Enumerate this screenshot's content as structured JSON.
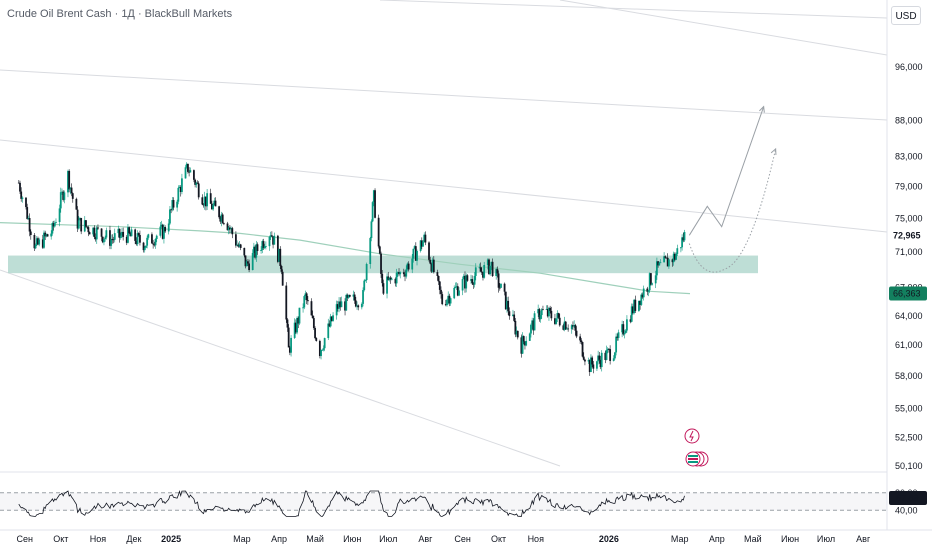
{
  "header": {
    "title": "Crude Oil Brent Cash · 1Д · BlackBull Markets",
    "currency_label": "USD"
  },
  "colors": {
    "bull": "#089981",
    "bear": "#131722",
    "zone": "#a8d3c8",
    "ma": "#9fd0bb",
    "channel": "#d9dbe0",
    "projection": "#9aa0a6",
    "last_price_bg": "#131722",
    "ma_label_bg": "#13805f"
  },
  "chart_data": [
    {
      "type": "candlestick",
      "title": "Crude Oil Brent Cash · 1Д · BlackBull Markets",
      "y_scale": "log",
      "y_axis_ticks": [
        "96,000",
        "88,000",
        "83,000",
        "79,000",
        "75,000",
        "71,000",
        "67,000",
        "64,000",
        "61,000",
        "58,000",
        "55,000",
        "52,500",
        "50,100"
      ],
      "x_axis_ticks": [
        "Сен",
        "Окт",
        "Ноя",
        "Дек",
        "2025",
        "Мар",
        "Апр",
        "Май",
        "Июн",
        "Июл",
        "Авг",
        "Сен",
        "Окт",
        "Ноя",
        "2026",
        "Мар",
        "Апр",
        "Май",
        "Июн",
        "Июл",
        "Авг"
      ],
      "price_labels": {
        "last_price": "72,965",
        "moving_average": "66,363"
      },
      "approx_close_path": [
        {
          "date": "2024-08-27",
          "close": 79.5
        },
        {
          "date": "2024-09-10",
          "close": 71.5
        },
        {
          "date": "2024-09-24",
          "close": 73.5
        },
        {
          "date": "2024-10-07",
          "close": 80.5
        },
        {
          "date": "2024-10-15",
          "close": 74.5
        },
        {
          "date": "2024-10-30",
          "close": 73.5
        },
        {
          "date": "2024-11-11",
          "close": 72.5
        },
        {
          "date": "2024-11-25",
          "close": 73.0
        },
        {
          "date": "2024-12-10",
          "close": 72.0
        },
        {
          "date": "2024-12-26",
          "close": 73.5
        },
        {
          "date": "2025-01-15",
          "close": 81.5
        },
        {
          "date": "2025-01-28",
          "close": 77.5
        },
        {
          "date": "2025-02-15",
          "close": 75.0
        },
        {
          "date": "2025-03-05",
          "close": 69.5
        },
        {
          "date": "2025-03-25",
          "close": 73.5
        },
        {
          "date": "2025-04-03",
          "close": 69.5
        },
        {
          "date": "2025-04-09",
          "close": 60.5
        },
        {
          "date": "2025-04-23",
          "close": 66.0
        },
        {
          "date": "2025-05-05",
          "close": 60.5
        },
        {
          "date": "2025-05-20",
          "close": 65.0
        },
        {
          "date": "2025-06-10",
          "close": 66.0
        },
        {
          "date": "2025-06-19",
          "close": 77.5
        },
        {
          "date": "2025-06-26",
          "close": 67.0
        },
        {
          "date": "2025-07-15",
          "close": 69.0
        },
        {
          "date": "2025-07-31",
          "close": 72.5
        },
        {
          "date": "2025-08-15",
          "close": 65.5
        },
        {
          "date": "2025-09-01",
          "close": 67.5
        },
        {
          "date": "2025-09-25",
          "close": 69.5
        },
        {
          "date": "2025-10-20",
          "close": 61.0
        },
        {
          "date": "2025-11-05",
          "close": 64.5
        },
        {
          "date": "2025-12-01",
          "close": 63.0
        },
        {
          "date": "2025-12-16",
          "close": 59.0
        },
        {
          "date": "2026-01-05",
          "close": 60.5
        },
        {
          "date": "2026-01-20",
          "close": 64.5
        },
        {
          "date": "2026-02-10",
          "close": 69.0
        },
        {
          "date": "2026-02-25",
          "close": 70.5
        },
        {
          "date": "2026-03-05",
          "close": 72.965
        }
      ],
      "resistance_zone": {
        "low": 68.6,
        "high": 70.6
      },
      "projection_paths": [
        {
          "style": "solid",
          "points": [
            {
              "date": "2026-03-09",
              "price": 72.965
            },
            {
              "date": "2026-03-24",
              "price": 76.5
            },
            {
              "date": "2026-04-05",
              "price": 74.0
            },
            {
              "date": "2026-05-10",
              "price": 90.0
            }
          ]
        },
        {
          "style": "dotted",
          "points": [
            {
              "date": "2026-03-09",
              "price": 72.0
            },
            {
              "date": "2026-04-08",
              "price": 69.2
            },
            {
              "date": "2026-05-20",
              "price": 84.0
            }
          ]
        }
      ]
    },
    {
      "type": "line",
      "indicator": "oscillator",
      "last_value": "67,89",
      "y_axis_ticks": [
        "80,00",
        "40,00"
      ],
      "x_axis_ticks": [
        "Сен",
        "Окт",
        "Ноя",
        "Дек",
        "2025",
        "Мар",
        "Апр",
        "Май",
        "Июн",
        "Июл",
        "Авг",
        "Сен",
        "Окт",
        "Ноя",
        "2026",
        "Мар",
        "Апр",
        "Май",
        "Июн",
        "Июл",
        "Авг"
      ]
    }
  ]
}
